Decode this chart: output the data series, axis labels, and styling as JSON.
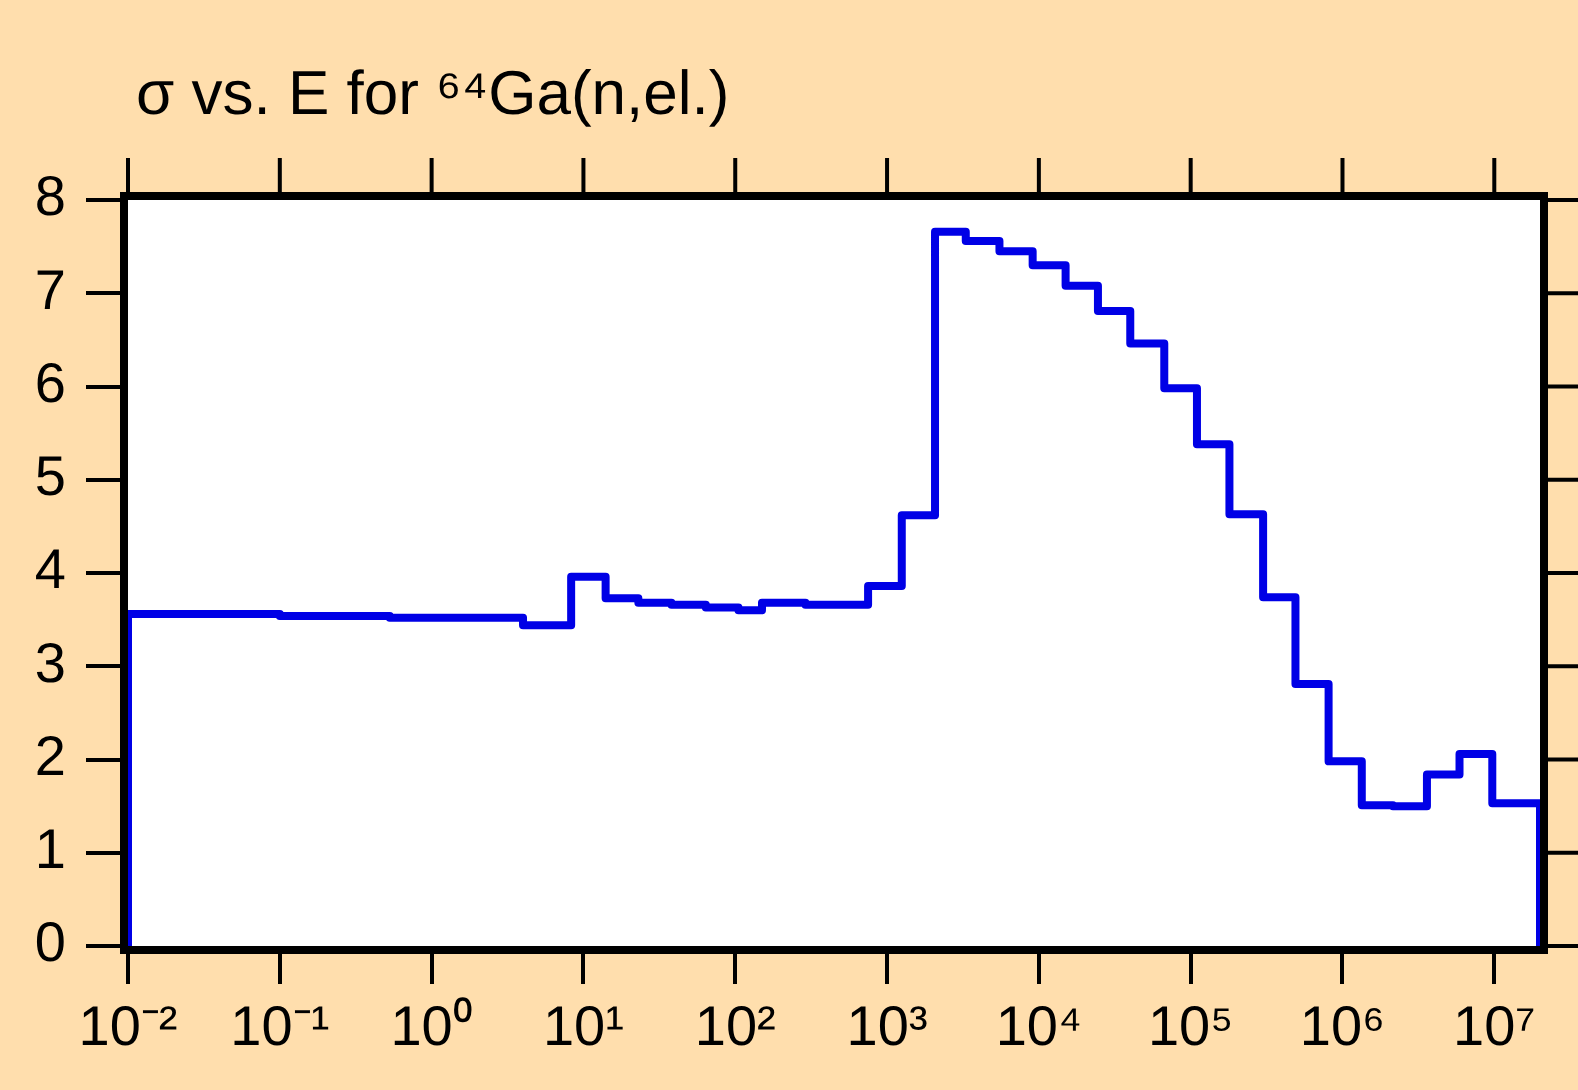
{
  "chart_data": {
    "type": "step",
    "title": "σ vs. E for ⁶⁴Ga(n,el.)",
    "color": "#0000e6",
    "marker": "none",
    "log": "x",
    "x": [
      0.01,
      0.01,
      0.1,
      0.53,
      4.0,
      8.3,
      14,
      23,
      38,
      64,
      105,
      150,
      290,
      750,
      1250,
      2070,
      3300,
      5500,
      9100,
      15000,
      24500,
      40000,
      67000,
      110000,
      180000,
      300000,
      490000,
      810000,
      1340000,
      2150000,
      3600000,
      5900000,
      9700000,
      20000000
    ],
    "values": [
      0,
      3.56,
      3.54,
      3.52,
      3.44,
      3.96,
      3.73,
      3.68,
      3.66,
      3.63,
      3.6,
      3.68,
      3.66,
      3.86,
      4.62,
      7.66,
      7.56,
      7.45,
      7.3,
      7.08,
      6.81,
      6.46,
      5.98,
      5.38,
      4.63,
      3.74,
      2.81,
      1.98,
      1.51,
      1.5,
      1.84,
      2.06,
      1.53,
      0
    ],
    "xlim": [
      0.01,
      20000000
    ],
    "ylim": [
      0,
      8
    ],
    "xticks": [
      {
        "value": 0.01,
        "label": "10⁻²"
      },
      {
        "value": 0.1,
        "label": "10⁻¹"
      },
      {
        "value": 1,
        "label": "10⁰"
      },
      {
        "value": 10,
        "label": "10¹"
      },
      {
        "value": 100,
        "label": "10²"
      },
      {
        "value": 1000,
        "label": "10³"
      },
      {
        "value": 10000,
        "label": "10⁴"
      },
      {
        "value": 100000,
        "label": "10⁵"
      },
      {
        "value": 1000000,
        "label": "10⁶"
      },
      {
        "value": 10000000,
        "label": "10⁷"
      }
    ],
    "yticks": [
      0,
      1,
      2,
      3,
      4,
      5,
      6,
      7,
      8
    ]
  }
}
